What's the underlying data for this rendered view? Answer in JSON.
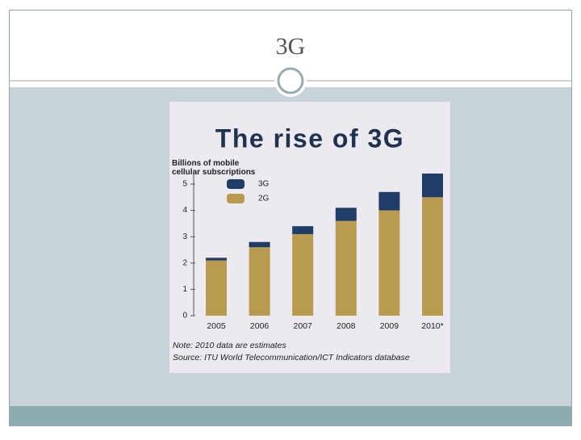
{
  "slide_title": "3G",
  "chart_data": {
    "type": "bar",
    "stacked": true,
    "title": "The rise of 3G",
    "y_label": "Billions of mobile cellular subscriptions",
    "categories": [
      "2005",
      "2006",
      "2007",
      "2008",
      "2009",
      "2010*"
    ],
    "series": [
      {
        "name": "2G",
        "color": "#b89b4e",
        "values": [
          2.1,
          2.6,
          3.1,
          3.6,
          4.0,
          4.5
        ]
      },
      {
        "name": "3G",
        "color": "#1f3d66",
        "values": [
          0.1,
          0.2,
          0.3,
          0.5,
          0.7,
          0.9
        ]
      }
    ],
    "ylim": [
      0,
      5.5
    ],
    "yticks": [
      0,
      1,
      2,
      3,
      4,
      5
    ],
    "note": "Note: 2010 data are estimates",
    "source": "Source: ITU World Telecommunication/ICT Indicators database"
  }
}
